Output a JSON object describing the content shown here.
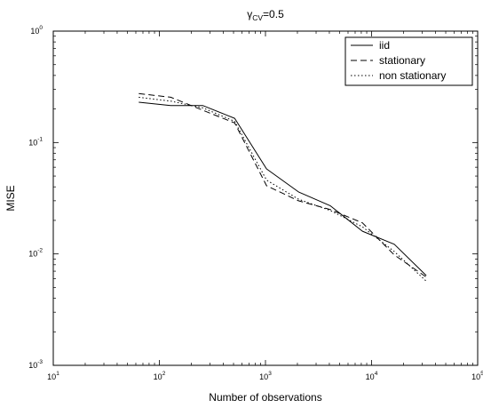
{
  "chart_data": {
    "type": "line",
    "title": {
      "symbol": "γ",
      "subscript": "CV",
      "suffix": "=0.5"
    },
    "xlabel": "Number of observations",
    "ylabel": "MISE",
    "xscale": "log",
    "yscale": "log",
    "xlim": [
      10,
      100000
    ],
    "ylim": [
      0.001,
      1
    ],
    "x_ticks": [
      {
        "base": "10",
        "exp": "1",
        "value": 10
      },
      {
        "base": "10",
        "exp": "2",
        "value": 100
      },
      {
        "base": "10",
        "exp": "3",
        "value": 1000
      },
      {
        "base": "10",
        "exp": "4",
        "value": 10000
      },
      {
        "base": "10",
        "exp": "5",
        "value": 100000
      }
    ],
    "y_ticks": [
      {
        "base": "10",
        "exp": "-3",
        "value": 0.001
      },
      {
        "base": "10",
        "exp": "-2",
        "value": 0.01
      },
      {
        "base": "10",
        "exp": "-1",
        "value": 0.1
      },
      {
        "base": "10",
        "exp": "0",
        "value": 1
      }
    ],
    "grid": false,
    "legend_position": "top-right",
    "series": [
      {
        "name": "iid",
        "style": "solid",
        "x": [
          64,
          128,
          256,
          512,
          1024,
          2048,
          4096,
          8192,
          16384,
          32768
        ],
        "y": [
          0.23,
          0.215,
          0.215,
          0.165,
          0.058,
          0.036,
          0.027,
          0.016,
          0.0122,
          0.0064
        ]
      },
      {
        "name": "stationary",
        "style": "dashed",
        "x": [
          64,
          128,
          256,
          512,
          1024,
          2048,
          4096,
          8192,
          16384,
          32768
        ],
        "y": [
          0.275,
          0.255,
          0.195,
          0.15,
          0.041,
          0.03,
          0.025,
          0.019,
          0.0098,
          0.0062
        ]
      },
      {
        "name": "non stationary",
        "style": "dotted",
        "x": [
          64,
          128,
          256,
          512,
          1024,
          2048,
          4096,
          8192,
          16384,
          32768
        ],
        "y": [
          0.255,
          0.235,
          0.205,
          0.155,
          0.046,
          0.031,
          0.0245,
          0.0175,
          0.0105,
          0.0057
        ]
      }
    ]
  }
}
